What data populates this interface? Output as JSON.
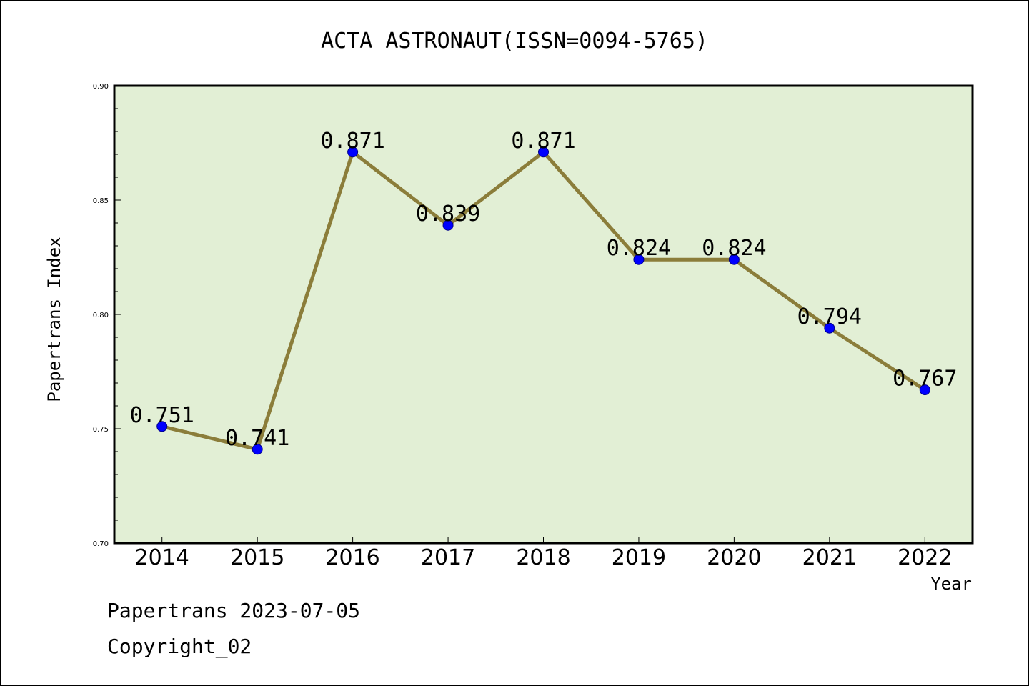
{
  "chart_data": {
    "type": "line",
    "title": "ACTA ASTRONAUT(ISSN=0094-5765)",
    "xlabel": "Year",
    "ylabel": "Papertrans Index",
    "categories": [
      "2014",
      "2015",
      "2016",
      "2017",
      "2018",
      "2019",
      "2020",
      "2021",
      "2022"
    ],
    "values": [
      0.751,
      0.741,
      0.871,
      0.839,
      0.871,
      0.824,
      0.824,
      0.794,
      0.767
    ],
    "value_labels": [
      "0.751",
      "0.741",
      "0.871",
      "0.839",
      "0.871",
      "0.824",
      "0.824",
      "0.794",
      "0.767"
    ],
    "ylim": [
      0.7,
      0.9
    ],
    "yticks": [
      "0.70",
      "0.75",
      "0.80",
      "0.85",
      "0.90"
    ],
    "grid": false,
    "legend": "none",
    "colors": {
      "plot_background": "#e2efd5",
      "line": "#8b7d3a",
      "marker": "#0000ff"
    }
  },
  "footer": {
    "line1": "Papertrans 2023-07-05",
    "line2": "Copyright_02"
  }
}
